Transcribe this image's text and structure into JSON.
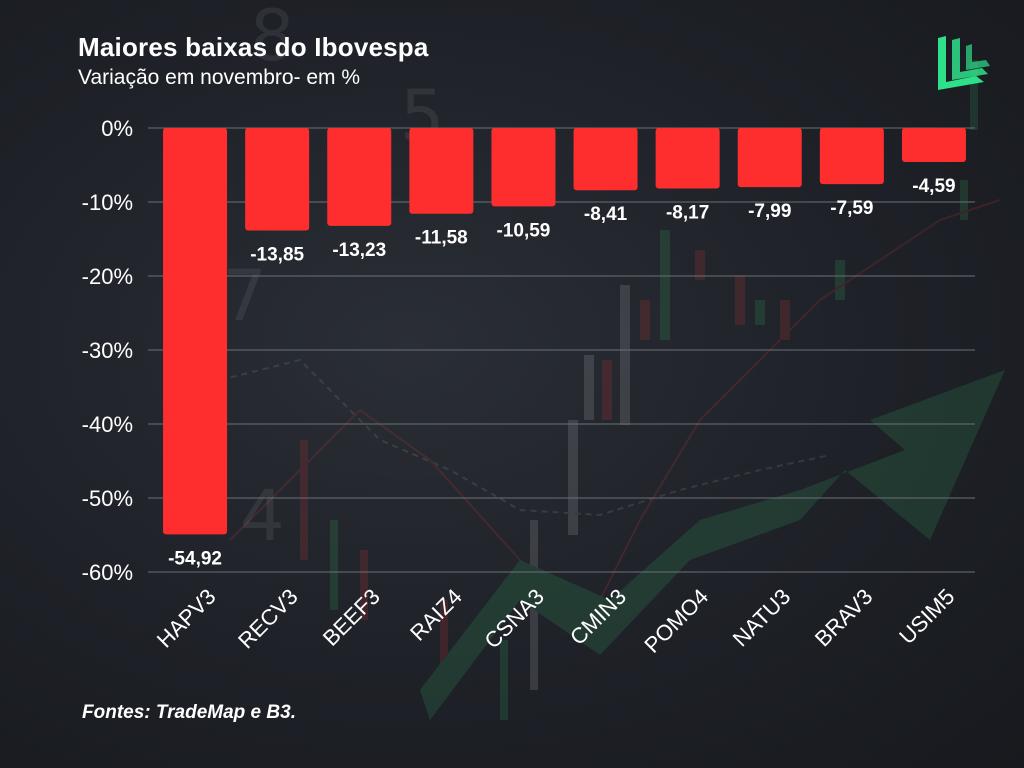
{
  "header": {
    "title": "Maiores baixas do Ibovespa",
    "subtitle": "Variação em novembro- em %"
  },
  "footer": {
    "source": "Fontes: TradeMap e B3."
  },
  "colors": {
    "bar": "#ff2e2e",
    "logo": "#2fe08a",
    "grid": "#6b6f77",
    "text": "#ffffff"
  },
  "logo": {
    "icon": "book-pages-logo-icon"
  },
  "chart_data": {
    "type": "bar",
    "categories": [
      "HAPV3",
      "RECV3",
      "BEEF3",
      "RAIZ4",
      "CSNA3",
      "CMIN3",
      "POMO4",
      "NATU3",
      "BRAV3",
      "USIM5"
    ],
    "values": [
      -54.92,
      -13.85,
      -13.23,
      -11.58,
      -10.59,
      -8.41,
      -8.17,
      -7.99,
      -7.59,
      -4.59
    ],
    "data_labels": [
      "-54,92",
      "-13,85",
      "-13,23",
      "-11,58",
      "-10,59",
      "-8,41",
      "-8,17",
      "-7,99",
      "-7,59",
      "-4,59"
    ],
    "yticks": [
      0,
      -10,
      -20,
      -30,
      -40,
      -50,
      -60
    ],
    "ytick_labels": [
      "0%",
      "-10%",
      "-20%",
      "-30%",
      "-40%",
      "-50%",
      "-60%"
    ],
    "ylim": [
      -60,
      0
    ],
    "grid": true,
    "legend": "none",
    "xlabel_rotation": "diagonal"
  }
}
